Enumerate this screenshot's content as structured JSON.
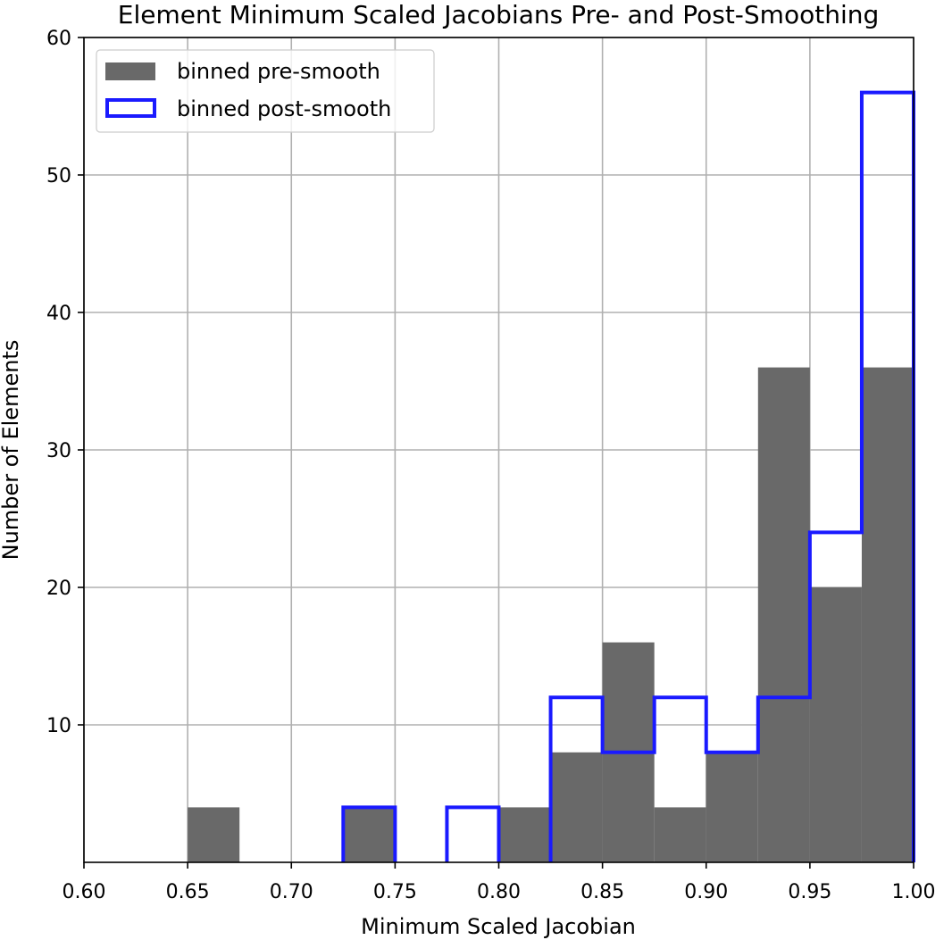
{
  "chart_data": {
    "type": "bar",
    "title": "Element Minimum Scaled Jacobians Pre- and Post-Smoothing",
    "xlabel": "Minimum Scaled Jacobian",
    "ylabel": "Number of Elements",
    "xlim": [
      0.6,
      1.0
    ],
    "ylim": [
      0,
      60
    ],
    "x_ticks": [
      "0.60",
      "0.65",
      "0.70",
      "0.75",
      "0.80",
      "0.85",
      "0.90",
      "0.95",
      "1.00"
    ],
    "y_ticks": [
      "10",
      "20",
      "30",
      "40",
      "50",
      "60"
    ],
    "grid": true,
    "legend_position": "upper-left",
    "bin_width": 0.025,
    "series": [
      {
        "name": "binned pre-smooth",
        "style": "filled",
        "color": "#696969",
        "bins": [
          {
            "x0": 0.65,
            "value": 4
          },
          {
            "x0": 0.725,
            "value": 4
          },
          {
            "x0": 0.8,
            "value": 4
          },
          {
            "x0": 0.825,
            "value": 8
          },
          {
            "x0": 0.85,
            "value": 16
          },
          {
            "x0": 0.875,
            "value": 4
          },
          {
            "x0": 0.9,
            "value": 8
          },
          {
            "x0": 0.925,
            "value": 36
          },
          {
            "x0": 0.95,
            "value": 20
          },
          {
            "x0": 0.975,
            "value": 36
          }
        ]
      },
      {
        "name": "binned post-smooth",
        "style": "step-outline",
        "color": "#1a1aff",
        "bins": [
          {
            "x0": 0.725,
            "value": 4
          },
          {
            "x0": 0.775,
            "value": 4
          },
          {
            "x0": 0.825,
            "value": 12
          },
          {
            "x0": 0.85,
            "value": 8
          },
          {
            "x0": 0.875,
            "value": 12
          },
          {
            "x0": 0.9,
            "value": 8
          },
          {
            "x0": 0.925,
            "value": 12
          },
          {
            "x0": 0.95,
            "value": 24
          },
          {
            "x0": 0.975,
            "value": 56
          }
        ]
      }
    ]
  }
}
